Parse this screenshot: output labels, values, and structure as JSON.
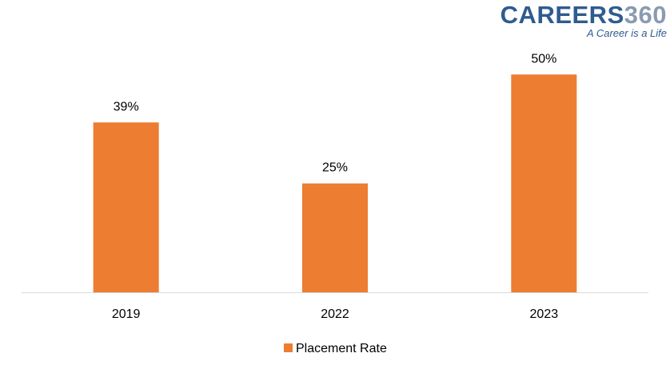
{
  "logo": {
    "brand": "CAREERS",
    "number": "360",
    "tagline": "A Career is a Life"
  },
  "colors": {
    "bar": "#ED7D31",
    "axis": "#D9D9D9",
    "text": "#000000"
  },
  "chart_data": {
    "type": "bar",
    "categories": [
      "2019",
      "2022",
      "2023"
    ],
    "series": [
      {
        "name": "Placement Rate",
        "values": [
          39,
          25,
          50
        ]
      }
    ],
    "data_labels": [
      "39%",
      "25%",
      "50%"
    ],
    "ylim": [
      0,
      55
    ],
    "grid": false,
    "legend": "bottom-center",
    "title": "",
    "xlabel": "",
    "ylabel": ""
  }
}
